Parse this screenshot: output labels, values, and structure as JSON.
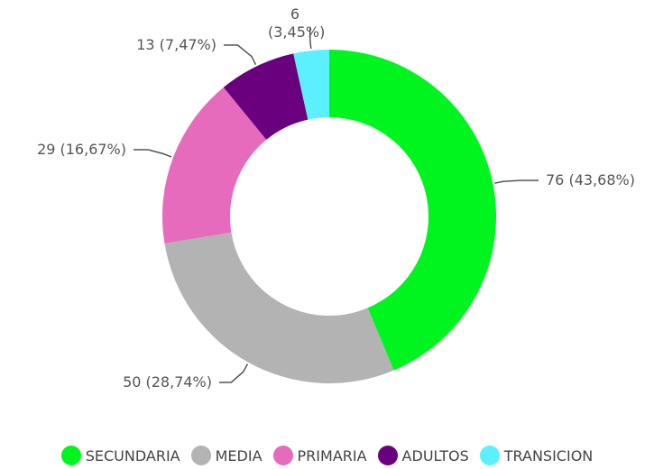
{
  "chart_data": {
    "type": "donut",
    "categories": [
      "SECUNDARIA",
      "MEDIA",
      "PRIMARIA",
      "ADULTOS",
      "TRANSICION"
    ],
    "values": [
      76,
      50,
      29,
      13,
      6
    ],
    "value_labels": [
      "76 (43,68%)",
      "50 (28,74%)",
      "29 (16,67%)",
      "13 (7,47%)",
      "6 (3,45%)"
    ],
    "colors": [
      "#00f51e",
      "#b3b3b3",
      "#e66bbd",
      "#6b007f",
      "#5cf0ff"
    ],
    "legend": "bottom"
  }
}
